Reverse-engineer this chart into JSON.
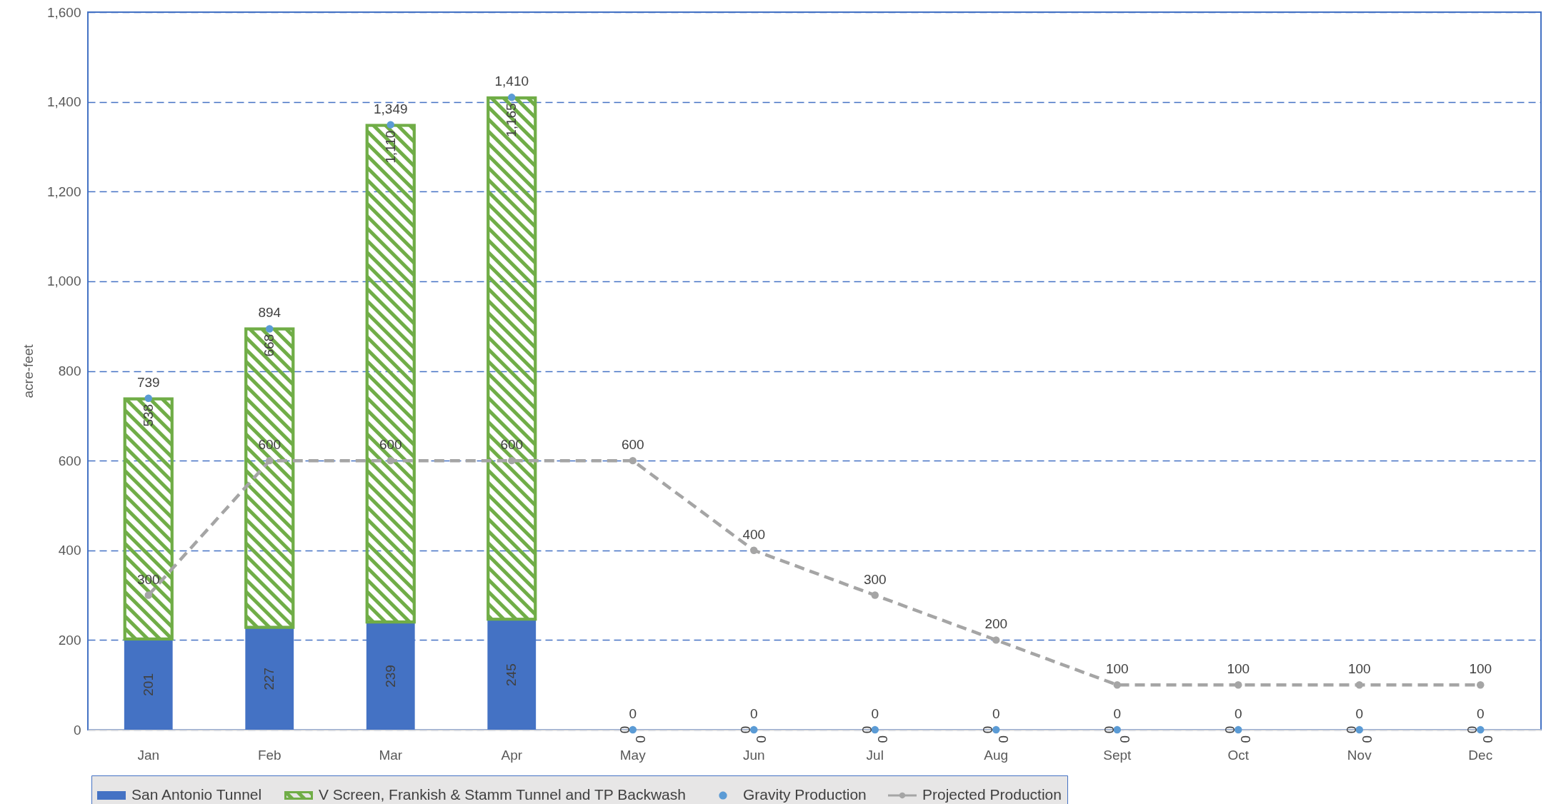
{
  "chart_data": {
    "type": "bar",
    "stacked": true,
    "ylabel": "acre-feet",
    "categories": [
      "Jan",
      "Feb",
      "Mar",
      "Apr",
      "May",
      "Jun",
      "Jul",
      "Aug",
      "Sept",
      "Oct",
      "Nov",
      "Dec"
    ],
    "series": [
      {
        "name": "San Antonio Tunnel",
        "color": "#4472c4",
        "values": [
          201,
          227,
          239,
          245,
          0,
          0,
          0,
          0,
          0,
          0,
          0,
          0
        ],
        "value_labels": [
          "201",
          "227",
          "239",
          "245",
          "0",
          "0",
          "0",
          "0",
          "0",
          "0",
          "0",
          "0"
        ]
      },
      {
        "name": "V Screen, Frankish & Stamm Tunnel and TP Backwash",
        "color": "#70ad47",
        "values": [
          538,
          668,
          1110,
          1165,
          0,
          0,
          0,
          0,
          0,
          0,
          0,
          0
        ],
        "value_labels": [
          "538",
          "668",
          "1,110",
          "1,165",
          "0",
          "0",
          "0",
          "0",
          "0",
          "0",
          "0",
          "0"
        ]
      },
      {
        "name": "Gravity Production",
        "type": "scatter",
        "color": "#5b9bd5",
        "values": [
          739,
          894,
          1349,
          1410,
          0,
          0,
          0,
          0,
          0,
          0,
          0,
          0
        ],
        "value_labels": [
          "739",
          "894",
          "1,349",
          "1,410",
          "0",
          "0",
          "0",
          "0",
          "0",
          "0",
          "0",
          "0"
        ]
      },
      {
        "name": "Projected Production",
        "type": "line",
        "color": "#a5a5a5",
        "values": [
          300,
          600,
          600,
          600,
          600,
          400,
          300,
          200,
          100,
          100,
          100,
          100
        ],
        "value_labels": [
          "300",
          "600",
          "600",
          "600",
          "600",
          "400",
          "300",
          "200",
          "100",
          "100",
          "100",
          "100"
        ]
      }
    ],
    "ylim": [
      0,
      1600
    ],
    "yticks": [
      0,
      200,
      400,
      600,
      800,
      {
        "value": 1000,
        "label": "1,000"
      },
      {
        "value": 1200,
        "label": "1,200"
      },
      {
        "value": 1400,
        "label": "1,400"
      },
      {
        "value": 1600,
        "label": "1,600"
      }
    ],
    "grid": "y",
    "legend": "bottom",
    "marker": "circle",
    "line_style": "dashed"
  }
}
